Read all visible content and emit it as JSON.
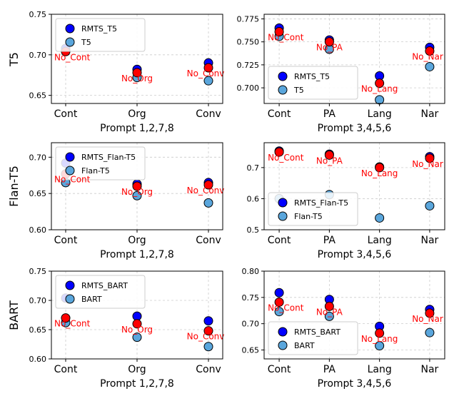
{
  "row_labels": [
    "T5",
    "Flan-T5",
    "BART"
  ],
  "colors": {
    "rmts": "#0000ff",
    "base": "#5aa6dc",
    "noctx": "#ff0000",
    "grid": "#cccccc"
  },
  "chart_data": [
    {
      "type": "scatter",
      "row": 0,
      "col": 0,
      "xlabel": "Prompt 1,2,7,8",
      "categories": [
        "Cont",
        "Org",
        "Conv"
      ],
      "ylim": [
        0.64,
        0.75
      ],
      "yticks": [
        0.65,
        0.7,
        0.75
      ],
      "grid": true,
      "legend": "upper-left",
      "series": [
        {
          "name": "RMTS_T5",
          "role": "rmts",
          "values": [
            0.708,
            0.682,
            0.69
          ]
        },
        {
          "name": "T5",
          "role": "base",
          "values": [
            0.706,
            0.672,
            0.668
          ]
        },
        {
          "role": "noctx",
          "values": [
            0.704,
            0.678,
            0.684
          ],
          "labels": [
            "No_Cont",
            "No_Org",
            "No_Conv"
          ]
        }
      ]
    },
    {
      "type": "scatter",
      "row": 0,
      "col": 1,
      "xlabel": "Prompt 3,4,5,6",
      "categories": [
        "Cont",
        "PA",
        "Lang",
        "Nar"
      ],
      "ylim": [
        0.683,
        0.78
      ],
      "yticks": [
        0.7,
        0.725,
        0.75,
        0.775
      ],
      "grid": true,
      "legend": "lower-left",
      "series": [
        {
          "name": "RMTS_T5",
          "role": "rmts",
          "values": [
            0.765,
            0.752,
            0.713,
            0.744
          ]
        },
        {
          "name": "T5",
          "role": "base",
          "values": [
            0.756,
            0.742,
            0.687,
            0.723
          ]
        },
        {
          "role": "noctx",
          "values": [
            0.761,
            0.75,
            0.705,
            0.74
          ],
          "labels": [
            "No_Cont",
            "No_PA",
            "No_Lang",
            "No_Nar"
          ]
        }
      ]
    },
    {
      "type": "scatter",
      "row": 1,
      "col": 0,
      "xlabel": "Prompt 1,2,7,8",
      "categories": [
        "Cont",
        "Org",
        "Conv"
      ],
      "ylim": [
        0.6,
        0.72
      ],
      "yticks": [
        0.6,
        0.65,
        0.7
      ],
      "grid": true,
      "legend": "upper-left",
      "series": [
        {
          "name": "RMTS_Flan-T5",
          "role": "rmts",
          "values": [
            0.692,
            0.663,
            0.665
          ]
        },
        {
          "name": "Flan-T5",
          "role": "base",
          "values": [
            0.665,
            0.647,
            0.637
          ]
        },
        {
          "role": "noctx",
          "values": [
            0.677,
            0.66,
            0.662
          ],
          "labels": [
            "No_Cont",
            "No_Org",
            "No_Conv"
          ]
        }
      ]
    },
    {
      "type": "scatter",
      "row": 1,
      "col": 1,
      "xlabel": "Prompt 3,4,5,6",
      "categories": [
        "Cont",
        "PA",
        "Lang",
        "Nar"
      ],
      "ylim": [
        0.5,
        0.78
      ],
      "yticks": [
        0.5,
        0.6,
        0.7
      ],
      "grid": true,
      "legend": "lower-left",
      "series": [
        {
          "name": "RMTS_Flan-T5",
          "role": "rmts",
          "values": [
            0.753,
            0.743,
            0.702,
            0.735
          ]
        },
        {
          "name": "Flan-T5",
          "role": "base",
          "values": [
            0.6,
            0.613,
            0.538,
            0.577
          ]
        },
        {
          "role": "noctx",
          "values": [
            0.75,
            0.74,
            0.7,
            0.73
          ],
          "labels": [
            "No_Cont",
            "No_PA",
            "No_Lang",
            "No_Nar"
          ]
        }
      ]
    },
    {
      "type": "scatter",
      "row": 2,
      "col": 0,
      "xlabel": "Prompt 1,2,7,8",
      "categories": [
        "Cont",
        "Org",
        "Conv"
      ],
      "ylim": [
        0.6,
        0.75
      ],
      "yticks": [
        0.6,
        0.65,
        0.7,
        0.75
      ],
      "grid": true,
      "legend": "upper-left",
      "series": [
        {
          "name": "RMTS_BART",
          "role": "rmts",
          "values": [
            0.704,
            0.673,
            0.665
          ]
        },
        {
          "name": "BART",
          "role": "base",
          "values": [
            0.662,
            0.637,
            0.621
          ]
        },
        {
          "role": "noctx",
          "values": [
            0.67,
            0.66,
            0.648
          ],
          "labels": [
            "No_Cont",
            "No_Org",
            "No_Conv"
          ]
        }
      ]
    },
    {
      "type": "scatter",
      "row": 2,
      "col": 1,
      "xlabel": "Prompt 3,4,5,6",
      "categories": [
        "Cont",
        "PA",
        "Lang",
        "Nar"
      ],
      "ylim": [
        0.633,
        0.8
      ],
      "yticks": [
        0.65,
        0.7,
        0.75,
        0.8
      ],
      "grid": true,
      "legend": "lower-left",
      "series": [
        {
          "name": "RMTS_BART",
          "role": "rmts",
          "values": [
            0.759,
            0.746,
            0.695,
            0.727
          ]
        },
        {
          "name": "BART",
          "role": "base",
          "values": [
            0.723,
            0.714,
            0.658,
            0.683
          ]
        },
        {
          "role": "noctx",
          "values": [
            0.741,
            0.733,
            0.682,
            0.72
          ],
          "labels": [
            "No_Cont",
            "No_PA",
            "No_Lang",
            "No_Nar"
          ]
        }
      ]
    }
  ]
}
